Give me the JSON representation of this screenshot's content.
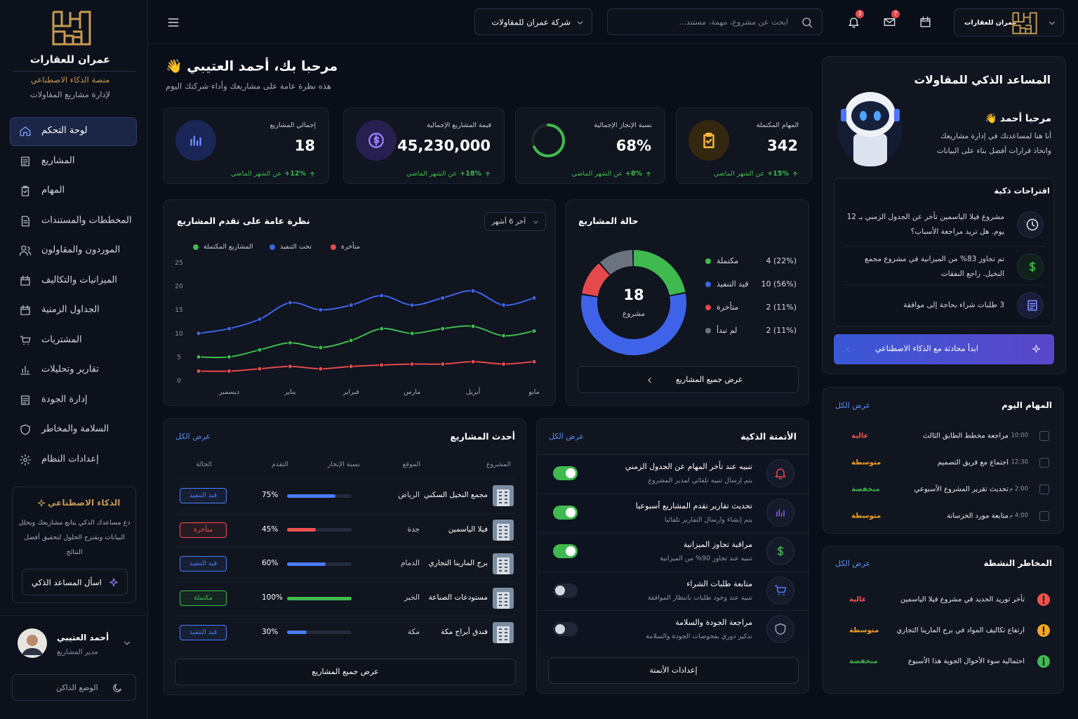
{
  "sidebar": {
    "brand": "عمران للعقارات",
    "tagline": [
      "منصة الذكاء الاصطناعي",
      "لإدارة مشاريع المقاولات"
    ],
    "nav": [
      "لوحة التحكم",
      "المشاريع",
      "المهام",
      "المخططات والمستندات",
      "الموردون والمقاولون",
      "الميزانيات والتكاليف",
      "الجداول الزمنية",
      "المشتريات",
      "تقارير وتحليلات",
      "إدارة الجودة",
      "السلامة والمخاطر",
      "إعدادات النظام"
    ],
    "ai_box": {
      "title": "الذكاء الاصطناعي",
      "text": "دع مساعدك الذكي يتابع مشاريعك ويحلل البيانات ويقترح الحلول لتحقيق أفضل النتائج",
      "button": "اسأل المساعد الذكي"
    },
    "user": {
      "name": "أحمد العتيبي",
      "role": "مدير المشاريع"
    },
    "dark_mode": "الوضع الداكن"
  },
  "topbar": {
    "company": "شركة عمران للمقاولات",
    "search_placeholder": "ابحث عن مشروع، مهمة، مستند...",
    "notifications": 3,
    "messages": 7,
    "account": "عمران للعقارات"
  },
  "header": {
    "greeting": "مرحبا بك، أحمد العتيبي 👋",
    "subtitle": "هذه نظرة عامة على مشاريعك وأداء شركتك اليوم"
  },
  "kpis": [
    {
      "label": "إجمالي المشاريع",
      "value": 18,
      "change": "+12%",
      "note": "عن الشهر الماضي"
    },
    {
      "label": "قيمة المشاريع الإجمالية",
      "value": 45230000,
      "value_label": "45,230,000",
      "change": "+18%",
      "note": "عن الشهر الماضي"
    },
    {
      "label": "نسبة الإنجاز الإجمالية",
      "value": 68,
      "value_label": "68%",
      "change": "+8%",
      "note": "عن الشهر الماضي"
    },
    {
      "label": "المهام المكتملة",
      "value": 342,
      "change": "+15%",
      "note": "عن الشهر الماضي"
    }
  ],
  "chart_data": [
    {
      "type": "line",
      "title": "نظرة عامة على تقدم المشاريع",
      "period": "آخر 6 أشهر",
      "categories": [
        null,
        "ديسمبر",
        null,
        "يناير",
        null,
        "فبراير",
        null,
        "مارس",
        null,
        "أبريل",
        null,
        "مايو"
      ],
      "series": [
        {
          "name": "المشاريع المكتملة",
          "color": "#3fb950",
          "values": [
            5,
            5,
            6.5,
            8,
            7,
            8.5,
            11,
            10,
            11,
            11.5,
            9.5,
            10.5
          ]
        },
        {
          "name": "تحت التنفيذ",
          "color": "#3f63e8",
          "values": [
            10,
            11,
            13,
            16.5,
            15,
            16,
            18,
            16,
            17.5,
            19,
            16,
            17.5
          ]
        },
        {
          "name": "متأخرة",
          "color": "#e5484d",
          "values": [
            2,
            2,
            2.5,
            3,
            2.5,
            3,
            3.3,
            3.5,
            3.5,
            4,
            3.5,
            4
          ]
        }
      ],
      "ylim": [
        0,
        25
      ],
      "yticks": [
        0,
        5,
        10,
        15,
        20,
        25
      ],
      "grid": false
    },
    {
      "type": "pie",
      "donut": true,
      "title": "حالة المشاريع",
      "center_value": 18,
      "center_label": "مشروع",
      "categories": [
        "مكتملة",
        "قيد التنفيذ",
        "متأخرة",
        "لم تبدأ"
      ],
      "values": [
        4,
        10,
        2,
        2
      ],
      "value_labels": [
        "4 (22%)",
        "10 (56%)",
        "2 (11%)",
        "2 (11%)"
      ],
      "colors": [
        "#3fb950",
        "#3f63e8",
        "#e5484d",
        "#6b7280"
      ],
      "button": "عرض جميع المشاريع"
    }
  ],
  "projects": {
    "title": "أحدث المشاريع",
    "view_all": "عرض الكل",
    "columns": [
      "المشروع",
      "الموقع",
      "نسبة الإنجاز",
      "التقدم",
      "الحالة"
    ],
    "rows": [
      {
        "name": "مجمع النخيل السكني",
        "location": "الرياض",
        "progress": 75,
        "progress_label": "75%",
        "status": "قيد التنفيذ",
        "color": "#4c7bf5"
      },
      {
        "name": "فيلا الياسمين",
        "location": "جدة",
        "progress": 45,
        "progress_label": "45%",
        "status": "متأخرة",
        "color": "#f0524f"
      },
      {
        "name": "برج المارينا التجاري",
        "location": "الدمام",
        "progress": 60,
        "progress_label": "60%",
        "status": "قيد التنفيذ",
        "color": "#4c7bf5"
      },
      {
        "name": "مستودعات الصناعة",
        "location": "الخبر",
        "progress": 100,
        "progress_label": "100%",
        "status": "مكتملة",
        "color": "#3fb950"
      },
      {
        "name": "فندق أبراج مكة",
        "location": "مكة",
        "progress": 30,
        "progress_label": "30%",
        "status": "قيد التنفيذ",
        "color": "#4c7bf5"
      }
    ],
    "button": "عرض جميع المشاريع"
  },
  "automation": {
    "title": "الأتمتة الذكية",
    "view_all": "عرض الكل",
    "items": [
      {
        "title": "تنبيه عند تأخر المهام عن الجدول الزمني",
        "desc": "يتم إرسال تنبيه تلقائي لمدير المشروع",
        "enabled": true,
        "color": "#e5484d"
      },
      {
        "title": "تحديث تقارير تقدم المشاريع أسبوعيا",
        "desc": "يتم إنشاء وارسال التقارير تلقائيا",
        "enabled": true,
        "color": "#8b5cf6"
      },
      {
        "title": "مراقبة تجاوز الميزانية",
        "desc": "تنبيه عند تجاوز 90% من الميزانية",
        "enabled": true,
        "color": "#3fb950"
      },
      {
        "title": "متابعة طلبات الشراء",
        "desc": "تنبيه عند وجود طلبات بانتظار الموافقة",
        "enabled": false,
        "color": "#4c7bf5"
      },
      {
        "title": "مراجعة الجودة والسلامة",
        "desc": "تذكير دوري بفحوصات الجودة والسلامة",
        "enabled": false,
        "color": "#9aa3b8"
      }
    ],
    "button": "إعدادات الأتمتة"
  },
  "assistant": {
    "title": "المساعد الذكي للمقاولات",
    "hello": "مرحبا أحمد 👋",
    "intro": [
      "أنا هنا لمساعدتك في إدارة مشاريعك",
      "واتخاذ قرارات أفضل بناء على البيانات"
    ],
    "suggestions_title": "اقتراحات ذكية",
    "suggestions": [
      "مشروع فيلا الياسمين تأخر عن الجدول الزمني بـ 12 يوم. هل تريد مراجعة الأسباب؟",
      "تم تجاوز 83% من الميزانية في مشروع مجمع النخيل. راجع النفقات",
      "3 طلبات شراء بحاجة إلى موافقة"
    ],
    "button": "ابدأ محادثة مع الذكاء الاصطناعي"
  },
  "tasks": {
    "title": "المهام اليوم",
    "view_all": "عرض الكل",
    "items": [
      {
        "time": "10:00",
        "title": "مراجعة مخطط الطابق الثالث",
        "priority": "عالية",
        "color": "#f0524f"
      },
      {
        "time": "12:30",
        "title": "اجتماع مع فريق التصميم",
        "priority": "متوسطة",
        "color": "#f5a524"
      },
      {
        "time": "2:00 م",
        "title": "تحديث تقرير المشروع الأسبوعي",
        "priority": "منخفضة",
        "color": "#3fb950"
      },
      {
        "time": "4:00 م",
        "title": "متابعة مورد الخرسانة",
        "priority": "متوسطة",
        "color": "#f5a524"
      }
    ]
  },
  "risks": {
    "title": "المخاطر النشطة",
    "view_all": "عرض الكل",
    "items": [
      {
        "text": "تأخر توريد الحديد في مشروع فيلا الياسمين",
        "level": "عالية",
        "color": "#f0524f"
      },
      {
        "text": "ارتفاع تكاليف المواد في برج المارينا التجاري",
        "level": "متوسطة",
        "color": "#f5a524"
      },
      {
        "text": "احتمالية سوء الأحوال الجوية هذا الأسبوع",
        "level": "منخفضة",
        "color": "#3fb950"
      }
    ]
  }
}
